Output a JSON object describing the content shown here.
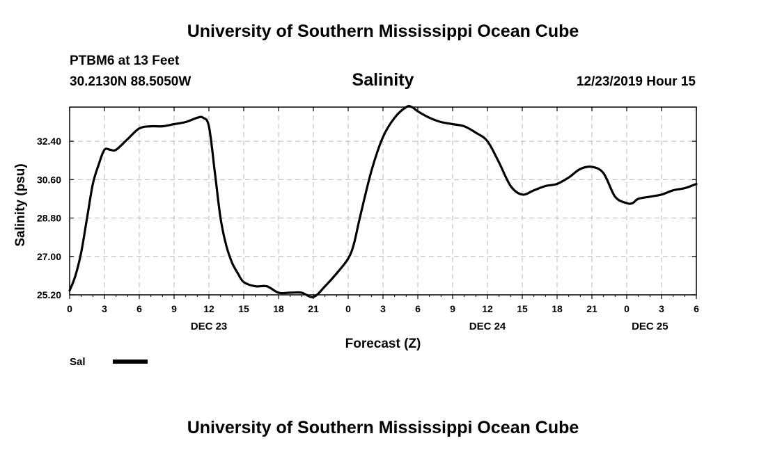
{
  "header": {
    "top_title": "University of Southern Mississippi Ocean Cube",
    "bottom_title": "University of Southern Mississippi Ocean Cube",
    "station": "PTBM6 at 13 Feet",
    "coords": "30.2130N 88.5050W",
    "timestamp": "12/23/2019 Hour 15"
  },
  "chart_data": {
    "type": "line",
    "title": "Salinity",
    "xlabel": "Forecast (Z)",
    "ylabel": "Salinity (psu)",
    "xlim": [
      0,
      54
    ],
    "ylim": [
      25.2,
      34.0
    ],
    "grid": true,
    "y_ticks": [
      "25.20",
      "27.00",
      "28.80",
      "30.60",
      "32.40"
    ],
    "y_tick_values": [
      25.2,
      27.0,
      28.8,
      30.6,
      32.4
    ],
    "x_tick_labels": [
      "0",
      "3",
      "6",
      "9",
      "12",
      "15",
      "18",
      "21",
      "0",
      "3",
      "6",
      "9",
      "12",
      "15",
      "18",
      "21",
      "0",
      "3",
      "6"
    ],
    "date_labels": [
      {
        "label": "DEC 23",
        "hour": 12
      },
      {
        "label": "DEC 24",
        "hour": 36
      },
      {
        "label": "DEC 25",
        "hour": 50
      }
    ],
    "legend": {
      "label": "Sal",
      "placement": "bottom-left"
    },
    "series": [
      {
        "name": "Sal",
        "color": "#000000",
        "x": [
          0,
          0.5,
          1,
          1.5,
          2,
          2.5,
          3,
          3.5,
          4,
          5,
          6,
          7,
          8,
          9,
          10,
          11,
          11.5,
          12,
          12.5,
          13,
          13.5,
          14,
          14.5,
          15,
          16,
          17,
          18,
          19,
          20,
          21,
          22,
          23,
          24,
          24.5,
          25,
          26,
          27,
          28,
          29,
          29.5,
          30,
          31,
          32,
          33,
          34,
          35,
          36,
          37,
          38,
          39,
          40,
          41,
          42,
          43,
          44,
          45,
          46,
          47,
          48,
          48.5,
          49,
          50,
          51,
          52,
          53,
          54
        ],
        "y": [
          25.4,
          26.1,
          27.2,
          28.8,
          30.4,
          31.3,
          32.0,
          32.0,
          32.0,
          32.5,
          33.0,
          33.1,
          33.1,
          33.2,
          33.3,
          33.5,
          33.5,
          33.1,
          31.0,
          28.8,
          27.5,
          26.7,
          26.2,
          25.8,
          25.6,
          25.6,
          25.3,
          25.3,
          25.3,
          25.1,
          25.6,
          26.2,
          26.9,
          27.6,
          28.8,
          31.0,
          32.6,
          33.5,
          34.0,
          34.0,
          33.8,
          33.5,
          33.3,
          33.2,
          33.1,
          32.8,
          32.4,
          31.4,
          30.3,
          29.9,
          30.1,
          30.3,
          30.4,
          30.7,
          31.1,
          31.2,
          30.9,
          29.8,
          29.5,
          29.5,
          29.7,
          29.8,
          29.9,
          30.1,
          30.2,
          30.4
        ]
      }
    ]
  }
}
